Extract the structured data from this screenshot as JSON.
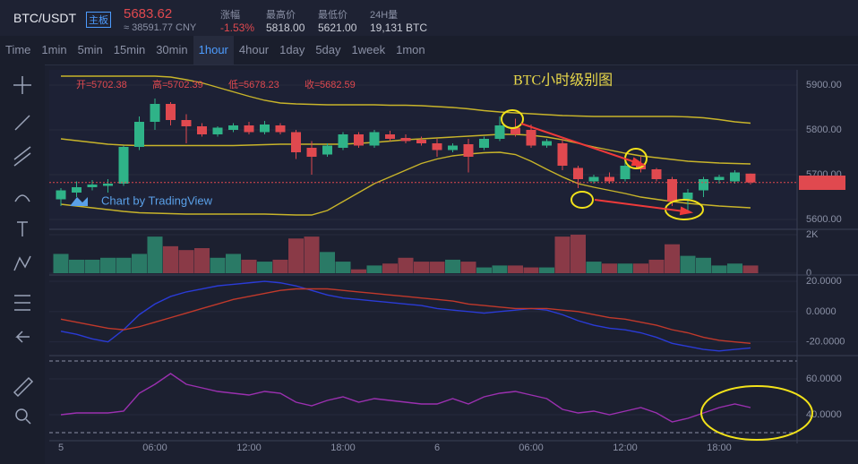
{
  "header": {
    "symbol": "BTC/USDT",
    "board": "主板",
    "price": "5683.62",
    "cny": "≈ 38591.77 CNY",
    "stats": [
      {
        "label": "涨幅",
        "value": "-1.53%"
      },
      {
        "label": "最高价",
        "value": "5818.00"
      },
      {
        "label": "最低价",
        "value": "5621.00"
      },
      {
        "label": "24H量",
        "value": "19,131 BTC"
      }
    ],
    "ohlc_labels": [
      "开=",
      "高=",
      "低=",
      "收="
    ]
  },
  "toolbar": [
    "Time",
    "1min",
    "5min",
    "15min",
    "30min",
    "1hour",
    "4hour",
    "1day",
    "5day",
    "1week",
    "1mon"
  ],
  "annotation": "BTC小时级别图",
  "credit": "Chart by TradingView",
  "chart_data": [
    {
      "type": "candlestick",
      "categories": [
        "5",
        null,
        null,
        null,
        null,
        null,
        "06:00",
        null,
        null,
        null,
        null,
        null,
        "12:00",
        null,
        null,
        null,
        null,
        null,
        "18:00",
        null,
        null,
        null,
        null,
        null,
        "6",
        null,
        null,
        null,
        null,
        null,
        "06:00",
        null,
        null,
        null,
        null,
        null,
        "12:00",
        null,
        null,
        null,
        null,
        null,
        "18:00",
        null,
        null
      ],
      "open": [
        5645,
        5660,
        5672,
        5675,
        5680,
        5762,
        5818,
        5858,
        5822,
        5808,
        5790,
        5800,
        5810,
        5795,
        5810,
        5795,
        5760,
        5745,
        5760,
        5790,
        5765,
        5790,
        5782,
        5778,
        5770,
        5755,
        5768,
        5760,
        5780,
        5805,
        5800,
        5765,
        5770,
        5715,
        5685,
        5695,
        5690,
        5725,
        5712,
        5690,
        5645,
        5665,
        5688,
        5685,
        5702.38
      ],
      "high": [
        5670,
        5685,
        5688,
        5690,
        5765,
        5830,
        5870,
        5862,
        5835,
        5815,
        5808,
        5815,
        5818,
        5820,
        5815,
        5800,
        5775,
        5770,
        5795,
        5795,
        5800,
        5798,
        5790,
        5785,
        5780,
        5770,
        5780,
        5785,
        5830,
        5825,
        5812,
        5780,
        5780,
        5720,
        5700,
        5705,
        5735,
        5740,
        5715,
        5695,
        5668,
        5695,
        5700,
        5710,
        5702.39
      ],
      "low": [
        5630,
        5650,
        5665,
        5660,
        5675,
        5755,
        5800,
        5810,
        5770,
        5785,
        5785,
        5795,
        5790,
        5790,
        5790,
        5735,
        5700,
        5740,
        5755,
        5760,
        5760,
        5775,
        5770,
        5765,
        5740,
        5750,
        5705,
        5755,
        5775,
        5785,
        5760,
        5760,
        5710,
        5670,
        5680,
        5680,
        5685,
        5705,
        5685,
        5630,
        5620,
        5650,
        5680,
        5680,
        5678.23
      ],
      "close": [
        5665,
        5672,
        5678,
        5680,
        5762,
        5818,
        5858,
        5822,
        5808,
        5790,
        5805,
        5810,
        5795,
        5812,
        5795,
        5750,
        5740,
        5765,
        5790,
        5765,
        5795,
        5780,
        5775,
        5770,
        5755,
        5765,
        5740,
        5780,
        5810,
        5790,
        5765,
        5775,
        5720,
        5690,
        5695,
        5685,
        5720,
        5712,
        5690,
        5640,
        5660,
        5690,
        5695,
        5705,
        5682.59
      ],
      "up_color": "#2fb388",
      "down_color": "#e0494f",
      "overlays": [
        {
          "color": "#c8b42a",
          "values": [
            5920,
            5920,
            5920,
            5920,
            5920,
            5920,
            5920,
            5918,
            5912,
            5905,
            5895,
            5885,
            5875,
            5866,
            5860,
            5858,
            5857,
            5856,
            5856,
            5856,
            5856,
            5855,
            5855,
            5854,
            5852,
            5850,
            5847,
            5843,
            5840,
            5838,
            5836,
            5834,
            5832,
            5831,
            5830,
            5830,
            5830,
            5830,
            5830,
            5830,
            5829,
            5827,
            5823,
            5818,
            5815
          ]
        },
        {
          "color": "#c8b42a",
          "values": [
            5780,
            5776,
            5772,
            5768,
            5766,
            5765,
            5765,
            5765,
            5765,
            5765,
            5765,
            5765,
            5766,
            5767,
            5768,
            5768,
            5768,
            5768,
            5768,
            5770,
            5772,
            5775,
            5778,
            5780,
            5782,
            5784,
            5786,
            5788,
            5790,
            5790,
            5788,
            5784,
            5778,
            5770,
            5762,
            5755,
            5748,
            5742,
            5738,
            5734,
            5730,
            5728,
            5726,
            5725,
            5724
          ]
        },
        {
          "color": "#c8b42a",
          "values": [
            5634,
            5630,
            5626,
            5622,
            5618,
            5615,
            5614,
            5613,
            5612,
            5612,
            5612,
            5612,
            5612,
            5612,
            5611,
            5610,
            5610,
            5620,
            5640,
            5660,
            5680,
            5695,
            5710,
            5725,
            5735,
            5742,
            5746,
            5749,
            5750,
            5745,
            5730,
            5712,
            5695,
            5680,
            5672,
            5665,
            5658,
            5650,
            5645,
            5640,
            5636,
            5633,
            5630,
            5628,
            5626
          ]
        }
      ],
      "ylim": [
        5580,
        5926
      ],
      "yticks": [
        {
          "value": 5600,
          "label": "5600.00"
        },
        {
          "value": 5700,
          "label": "5700.00"
        },
        {
          "value": 5800,
          "label": "5800.00"
        },
        {
          "value": 5900,
          "label": "5900.00"
        }
      ]
    },
    {
      "type": "bar",
      "values": [
        1000,
        700,
        700,
        800,
        800,
        1000,
        1900,
        1400,
        1200,
        1300,
        800,
        1000,
        700,
        600,
        700,
        1800,
        1900,
        1100,
        600,
        200,
        400,
        500,
        800,
        600,
        600,
        700,
        600,
        300,
        400,
        400,
        300,
        300,
        1900,
        2000,
        600,
        500,
        500,
        500,
        700,
        1500,
        900,
        800,
        400,
        500,
        400
      ],
      "up_color": "#2a7a66",
      "down_color": "#8a3a47",
      "ylim": [
        0,
        2230
      ],
      "yticks": [
        0,
        {
          "value": 2000,
          "label": "2K"
        }
      ]
    },
    {
      "type": "line",
      "series": [
        {
          "color": "#2a3bd6",
          "values": [
            -13,
            -15,
            -18,
            -20,
            -12,
            -2,
            5,
            10,
            13,
            15,
            17,
            18,
            19,
            20,
            19,
            17,
            14,
            11,
            9,
            8,
            7,
            6,
            5,
            4,
            2,
            1,
            0,
            -1,
            0,
            1,
            2,
            1,
            -2,
            -6,
            -9,
            -11,
            -12,
            -14,
            -17,
            -21,
            -23,
            -25,
            -26,
            -25,
            -24
          ]
        },
        {
          "color": "#c0392b",
          "values": [
            -5,
            -7,
            -9,
            -11,
            -12,
            -10,
            -7,
            -4,
            -1,
            2,
            5,
            8,
            10,
            12,
            14,
            15,
            15,
            15,
            14,
            13,
            12,
            11,
            10,
            9,
            8,
            7,
            5,
            4,
            3,
            2,
            2,
            2,
            1,
            0,
            -2,
            -4,
            -5,
            -7,
            -9,
            -12,
            -14,
            -17,
            -19,
            -20,
            -21
          ]
        }
      ],
      "ylim": [
        -27.9,
        22.4
      ],
      "yticks": [
        {
          "value": 20,
          "label": "20.0000"
        },
        {
          "value": 0,
          "label": "0.0000"
        },
        {
          "value": -20,
          "label": "-20.0000"
        }
      ]
    },
    {
      "type": "line",
      "series": [
        {
          "color": "#9b30b0",
          "values": [
            40,
            41,
            41,
            41,
            42,
            52,
            57,
            63,
            57,
            55,
            53,
            52,
            51,
            53,
            52,
            47,
            45,
            48,
            50,
            47,
            49,
            48,
            47,
            46,
            46,
            49,
            46,
            50,
            52,
            53,
            51,
            49,
            43,
            41,
            42,
            40,
            42,
            44,
            41,
            36,
            38,
            41,
            44,
            46,
            44
          ]
        }
      ],
      "guides": [
        70,
        30
      ],
      "ylim": [
        26.5,
        71.5
      ],
      "yticks": [
        {
          "value": 60,
          "label": "60.0000"
        },
        {
          "value": 40,
          "label": "40.0000"
        }
      ]
    }
  ]
}
